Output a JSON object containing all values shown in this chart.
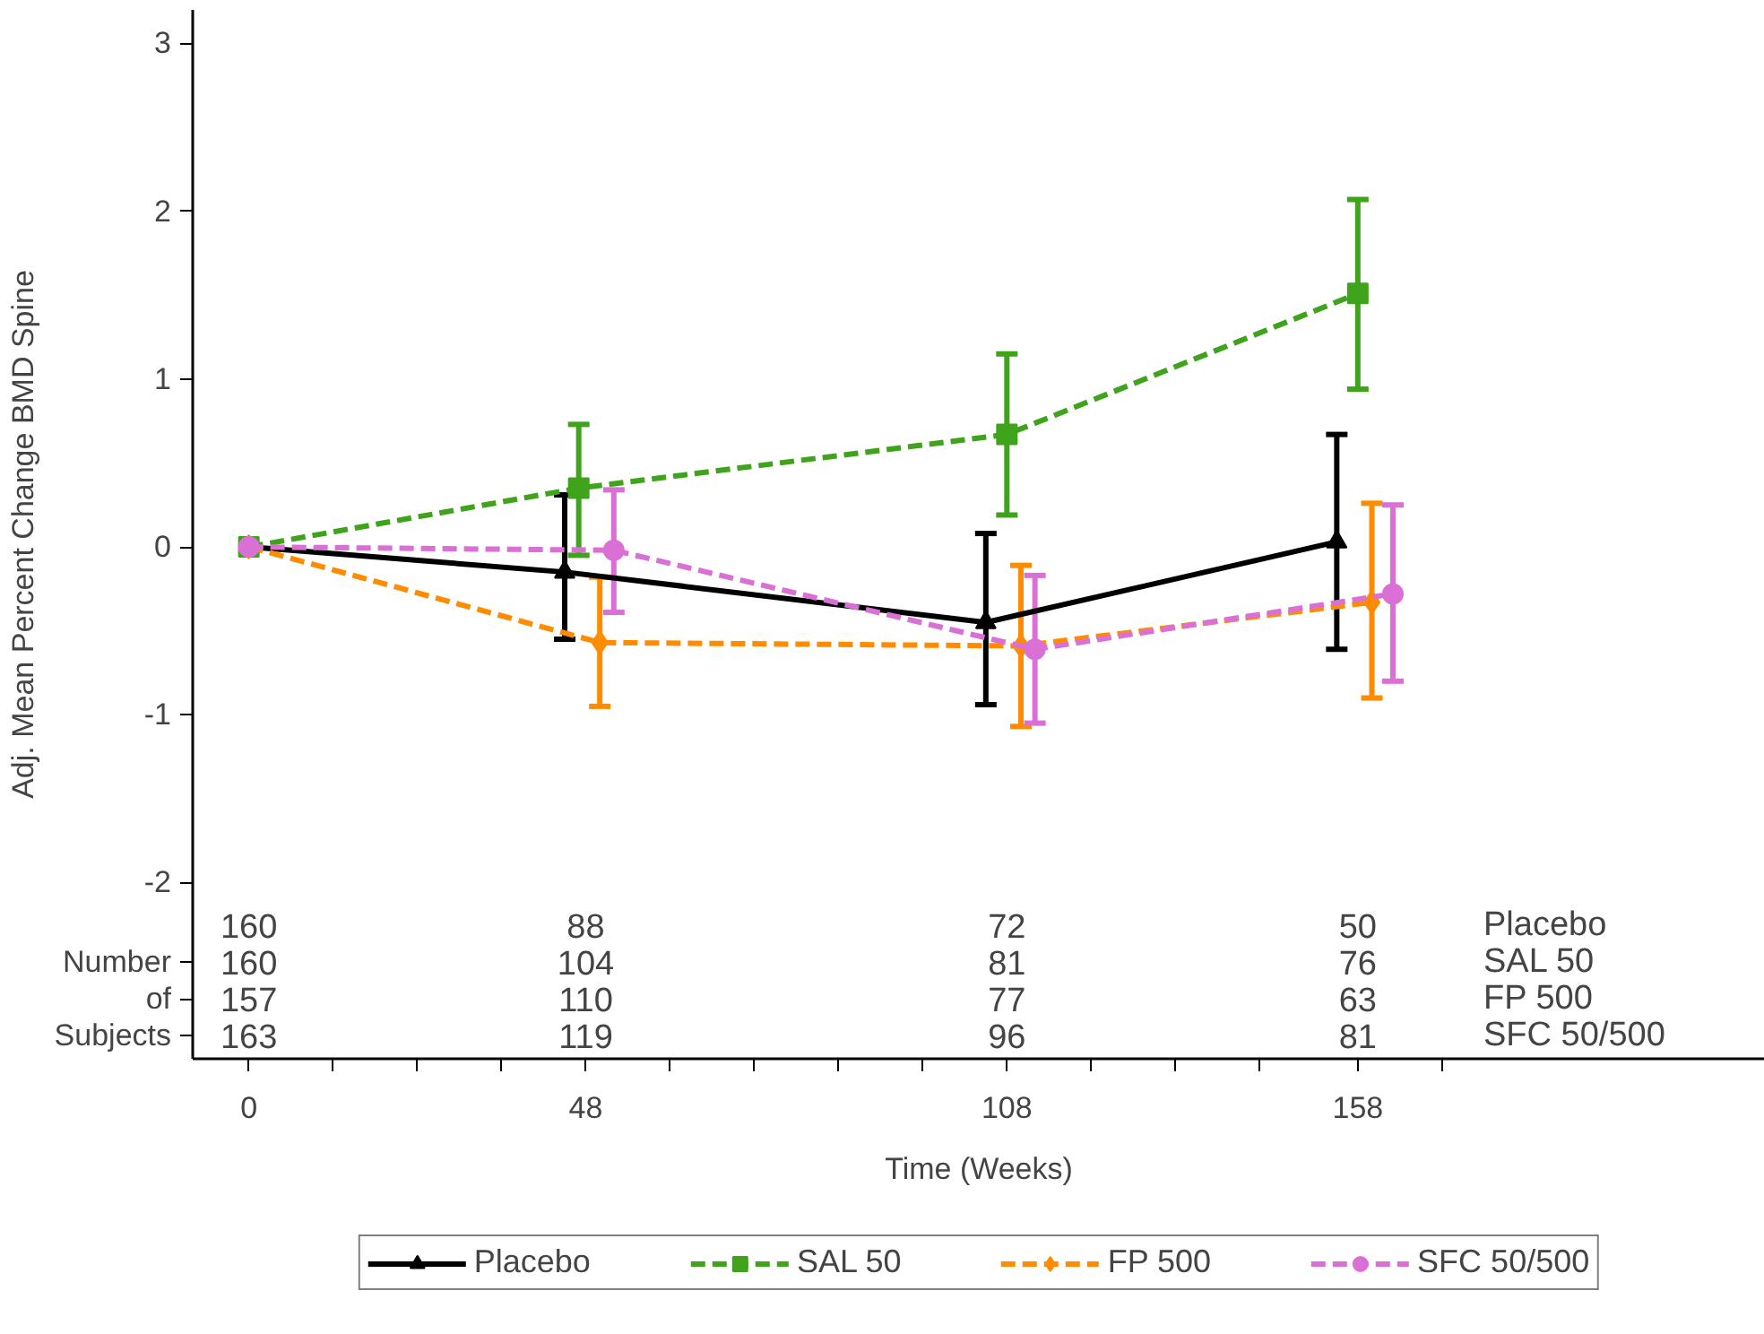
{
  "chart_data": {
    "type": "line",
    "xlabel": "Time (Weeks)",
    "ylabel": "Adj. Mean Percent Change BMD Spine",
    "xlim": [
      -8,
      216
    ],
    "ylim": [
      -3.05,
      3.2
    ],
    "xticks": [
      0,
      {
        "value": 12,
        "label": null
      },
      {
        "value": 24,
        "label": null
      },
      {
        "value": 36,
        "label": null
      },
      48,
      {
        "value": 60,
        "label": null
      },
      {
        "value": 72,
        "label": null
      },
      {
        "value": 84,
        "label": null
      },
      {
        "value": 96,
        "label": null
      },
      108,
      {
        "value": 120,
        "label": null
      },
      {
        "value": 132,
        "label": null
      },
      {
        "value": 144,
        "label": null
      },
      158,
      {
        "value": 170,
        "label": null
      }
    ],
    "yticks": [
      -2,
      -1,
      0,
      1,
      2,
      3
    ],
    "grid": false,
    "legend": "bottom",
    "series": [
      {
        "name": "Placebo",
        "color": "#000000",
        "marker": "triangle",
        "line_style": "solid",
        "x": [
          0,
          45,
          105,
          155
        ],
        "values": [
          0,
          -0.15,
          -0.45,
          0.03
        ],
        "errors": [
          null,
          [
            -0.55,
            0.31
          ],
          [
            -0.94,
            0.08
          ],
          [
            -0.61,
            0.67
          ]
        ]
      },
      {
        "name": "SAL 50",
        "color": "#3fa31b",
        "marker": "square",
        "line_style": "dashed",
        "x": [
          0,
          47,
          108,
          158
        ],
        "values": [
          0,
          0.35,
          0.67,
          1.51
        ],
        "errors": [
          null,
          [
            -0.05,
            0.73
          ],
          [
            0.19,
            1.15
          ],
          [
            0.94,
            2.07
          ]
        ]
      },
      {
        "name": "FP 500",
        "color": "#ff8c00",
        "marker": "diamond",
        "line_style": "dashed",
        "x": [
          0,
          50,
          110,
          160
        ],
        "values": [
          0,
          -0.57,
          -0.59,
          -0.33
        ],
        "errors": [
          null,
          [
            -0.95,
            -0.18
          ],
          [
            -1.07,
            -0.11
          ],
          [
            -0.9,
            0.26
          ]
        ]
      },
      {
        "name": "SFC 50/500",
        "color": "#da70d6",
        "marker": "circle",
        "line_style": "dashed",
        "x": [
          0,
          52,
          112,
          163
        ],
        "values": [
          0,
          -0.02,
          -0.61,
          -0.28
        ],
        "errors": [
          null,
          [
            -0.39,
            0.34
          ],
          [
            -1.05,
            -0.17
          ],
          [
            -0.8,
            0.25
          ]
        ]
      }
    ],
    "annotations": [
      "Number",
      "of",
      "Subjects",
      "160",
      "88",
      "72",
      "50",
      "Placebo",
      "160",
      "104",
      "81",
      "76",
      "SAL 50",
      "157",
      "110",
      "77",
      "63",
      "FP 500",
      "163",
      "119",
      "96",
      "81",
      "SFC 50/500"
    ]
  }
}
